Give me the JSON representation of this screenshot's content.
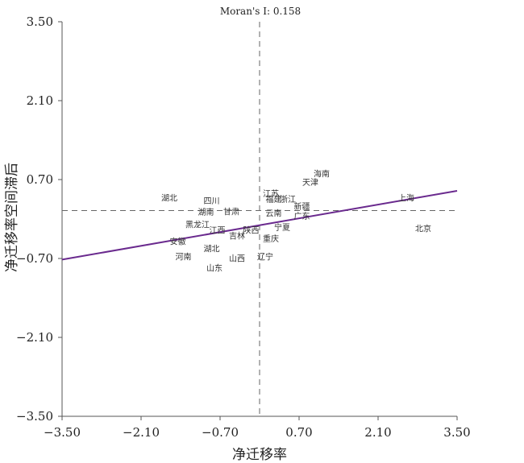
{
  "chart_data": {
    "type": "scatter",
    "title": "Moran's I: 0.158",
    "xlabel": "净迁移率",
    "ylabel": "净迁移率空间滞后",
    "xlim": [
      -3.5,
      3.5
    ],
    "ylim": [
      -3.5,
      3.5
    ],
    "xticks": [
      "−3.50",
      "−2.10",
      "−0.70",
      "0.70",
      "2.10",
      "3.50"
    ],
    "yticks": [
      "3.50",
      "2.10",
      "0.70",
      "−0.70",
      "−2.10",
      "−3.50"
    ],
    "grid": false,
    "reference_lines": {
      "x_mean": 0.0,
      "y_mean": 0.15
    },
    "regression_line": {
      "x": [
        -3.5,
        3.5
      ],
      "y": [
        -0.72,
        0.5
      ],
      "color": "#6a2a8e"
    },
    "points": [
      {
        "label": "海南",
        "x": 1.1,
        "y": 0.75
      },
      {
        "label": "天津",
        "x": 0.9,
        "y": 0.6
      },
      {
        "label": "江苏",
        "x": 0.2,
        "y": 0.4
      },
      {
        "label": "福建",
        "x": 0.25,
        "y": 0.3
      },
      {
        "label": "浙江",
        "x": 0.5,
        "y": 0.3
      },
      {
        "label": "新疆",
        "x": 0.75,
        "y": 0.17
      },
      {
        "label": "广东",
        "x": 0.75,
        "y": -0.0
      },
      {
        "label": "湖北",
        "x": -1.6,
        "y": 0.32
      },
      {
        "label": "四川",
        "x": -0.85,
        "y": 0.27
      },
      {
        "label": "湖南",
        "x": -0.95,
        "y": 0.07
      },
      {
        "label": "甘肃",
        "x": -0.5,
        "y": 0.08
      },
      {
        "label": "云南",
        "x": 0.25,
        "y": 0.05
      },
      {
        "label": "上海",
        "x": 2.6,
        "y": 0.32
      },
      {
        "label": "北京",
        "x": 2.9,
        "y": -0.22
      },
      {
        "label": "黑龙江",
        "x": -1.1,
        "y": -0.15
      },
      {
        "label": "江西",
        "x": -0.75,
        "y": -0.25
      },
      {
        "label": "陕西",
        "x": -0.15,
        "y": -0.25
      },
      {
        "label": "宁夏",
        "x": 0.4,
        "y": -0.2
      },
      {
        "label": "安徽",
        "x": -1.45,
        "y": -0.45
      },
      {
        "label": "吉林",
        "x": -0.4,
        "y": -0.35
      },
      {
        "label": "重庆",
        "x": 0.2,
        "y": -0.4
      },
      {
        "label": "湖北",
        "x": -0.85,
        "y": -0.58
      },
      {
        "label": "辽宁",
        "x": 0.1,
        "y": -0.72
      },
      {
        "label": "河南",
        "x": -1.35,
        "y": -0.72
      },
      {
        "label": "山西",
        "x": -0.4,
        "y": -0.75
      },
      {
        "label": "山东",
        "x": -0.8,
        "y": -0.92
      }
    ]
  }
}
